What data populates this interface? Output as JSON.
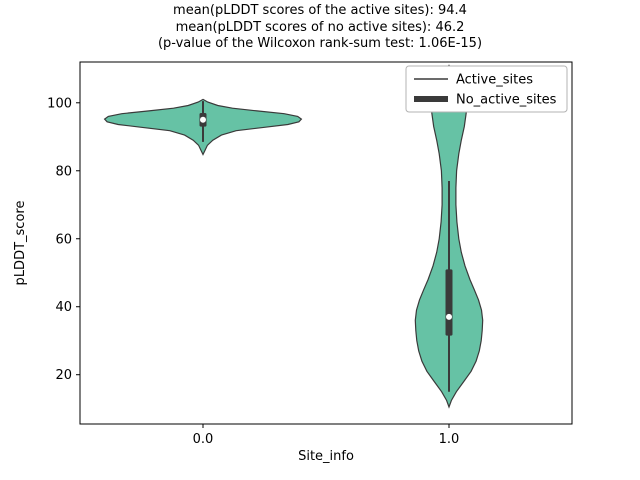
{
  "chart_data": {
    "type": "violin",
    "title_lines": [
      "mean(pLDDT scores of the active sites): 94.4",
      "mean(pLDDT scores of no active sites): 46.2",
      "(p-value of the Wilcoxon rank-sum test: 1.06E-15)"
    ],
    "xlabel": "Site_info",
    "ylabel": "pLDDT_score",
    "xlim": [
      -0.5,
      1.5
    ],
    "ylim": [
      5.5,
      112
    ],
    "xticks": [
      {
        "value": 0,
        "label": "0.0"
      },
      {
        "value": 1,
        "label": "1.0"
      }
    ],
    "yticks": [
      {
        "value": 20,
        "label": "20"
      },
      {
        "value": 40,
        "label": "40"
      },
      {
        "value": 60,
        "label": "60"
      },
      {
        "value": 80,
        "label": "80"
      },
      {
        "value": 100,
        "label": "100"
      }
    ],
    "legend": {
      "position": "upper right",
      "entries": [
        {
          "label": "Active_sites",
          "line_width": 1.5
        },
        {
          "label": "No_active_sites",
          "line_width": 6
        }
      ]
    },
    "colors": {
      "violin_fill": "#66c2a5",
      "violin_edge": "#3a3a3a",
      "box": "#3a3a3a",
      "median_dot": "#ffffff",
      "axis": "#000000",
      "legend_border": "#b3b3b3",
      "text": "#000000"
    },
    "violins": [
      {
        "x": 0,
        "group": "Active_sites",
        "mean": 94.4,
        "median": 95,
        "q1": 93,
        "q3": 97,
        "whisker_low": 88.5,
        "whisker_high": 100.5,
        "profile": [
          [
            84.8,
            0
          ],
          [
            86,
            0.008
          ],
          [
            87.5,
            0.018
          ],
          [
            89,
            0.04
          ],
          [
            90.5,
            0.075
          ],
          [
            91.8,
            0.135
          ],
          [
            92.8,
            0.25
          ],
          [
            93.6,
            0.345
          ],
          [
            94.4,
            0.39
          ],
          [
            95.2,
            0.4
          ],
          [
            96,
            0.385
          ],
          [
            96.8,
            0.33
          ],
          [
            97.6,
            0.22
          ],
          [
            98.4,
            0.12
          ],
          [
            99.2,
            0.06
          ],
          [
            100.2,
            0.02
          ],
          [
            101,
            0
          ]
        ]
      },
      {
        "x": 1,
        "group": "No_active_sites",
        "mean": 46.2,
        "median": 37,
        "q1": 31.5,
        "q3": 51,
        "whisker_low": 15,
        "whisker_high": 77,
        "profile": [
          [
            10.5,
            0
          ],
          [
            12.5,
            0.01
          ],
          [
            15,
            0.03
          ],
          [
            18,
            0.06
          ],
          [
            21,
            0.09
          ],
          [
            24,
            0.11
          ],
          [
            27,
            0.123
          ],
          [
            30,
            0.131
          ],
          [
            33,
            0.135
          ],
          [
            36,
            0.137
          ],
          [
            39,
            0.132
          ],
          [
            42,
            0.12
          ],
          [
            45,
            0.103
          ],
          [
            48,
            0.085
          ],
          [
            52,
            0.065
          ],
          [
            56,
            0.05
          ],
          [
            60,
            0.04
          ],
          [
            65,
            0.032
          ],
          [
            70,
            0.028
          ],
          [
            75,
            0.028
          ],
          [
            80,
            0.031
          ],
          [
            85,
            0.04
          ],
          [
            89,
            0.05
          ],
          [
            93,
            0.062
          ],
          [
            97,
            0.07
          ],
          [
            101,
            0.065
          ],
          [
            104,
            0.052
          ],
          [
            107,
            0.035
          ],
          [
            109.5,
            0.016
          ],
          [
            111,
            0
          ]
        ]
      }
    ]
  }
}
